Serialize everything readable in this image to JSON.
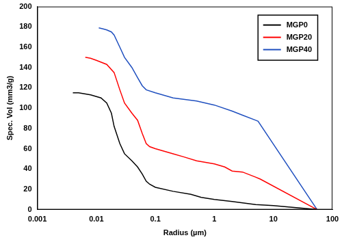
{
  "chart_data": {
    "type": "line",
    "x_label": "Radius (µm)",
    "y_label": "Spec. Vol (mm3/g)",
    "log": "x",
    "grid": false,
    "legend": "top-right",
    "xlim": [
      0.001,
      100
    ],
    "xticks": [
      0.001,
      0.01,
      0.1,
      1,
      10,
      100
    ],
    "ylim": [
      0,
      200
    ],
    "yticks": [
      0,
      20,
      40,
      60,
      80,
      100,
      120,
      140,
      160,
      180,
      200
    ],
    "series": [
      {
        "name": "MGP0",
        "color": "#000000",
        "x": [
          0.004,
          0.005,
          0.008,
          0.012,
          0.015,
          0.018,
          0.02,
          0.025,
          0.03,
          0.04,
          0.05,
          0.06,
          0.07,
          0.08,
          0.1,
          0.2,
          0.4,
          0.6,
          1,
          2,
          5,
          10,
          55
        ],
        "values": [
          115,
          115,
          113,
          110,
          105,
          95,
          82,
          65,
          55,
          48,
          42,
          35,
          28,
          25,
          22,
          18,
          15,
          12,
          10,
          8,
          5,
          4,
          0
        ]
      },
      {
        "name": "MGP20",
        "color": "#ff0000",
        "x": [
          0.0065,
          0.008,
          0.01,
          0.015,
          0.02,
          0.025,
          0.03,
          0.04,
          0.05,
          0.06,
          0.07,
          0.08,
          0.1,
          0.2,
          0.3,
          0.5,
          1,
          1.5,
          2,
          3,
          5,
          6,
          55
        ],
        "values": [
          150,
          149,
          147,
          143,
          135,
          118,
          105,
          95,
          88,
          75,
          65,
          62,
          60,
          55,
          52,
          48,
          45,
          42,
          38,
          37,
          32,
          30,
          0
        ]
      },
      {
        "name": "MGP40",
        "color": "#1f4fbf",
        "x": [
          0.011,
          0.013,
          0.015,
          0.018,
          0.02,
          0.025,
          0.03,
          0.04,
          0.05,
          0.06,
          0.07,
          0.1,
          0.2,
          0.5,
          1,
          2,
          3,
          5,
          5.5,
          55
        ],
        "values": [
          179,
          178,
          177,
          175,
          172,
          160,
          150,
          140,
          130,
          122,
          118,
          115,
          110,
          107,
          103,
          97,
          93,
          88,
          87,
          0
        ]
      }
    ]
  }
}
